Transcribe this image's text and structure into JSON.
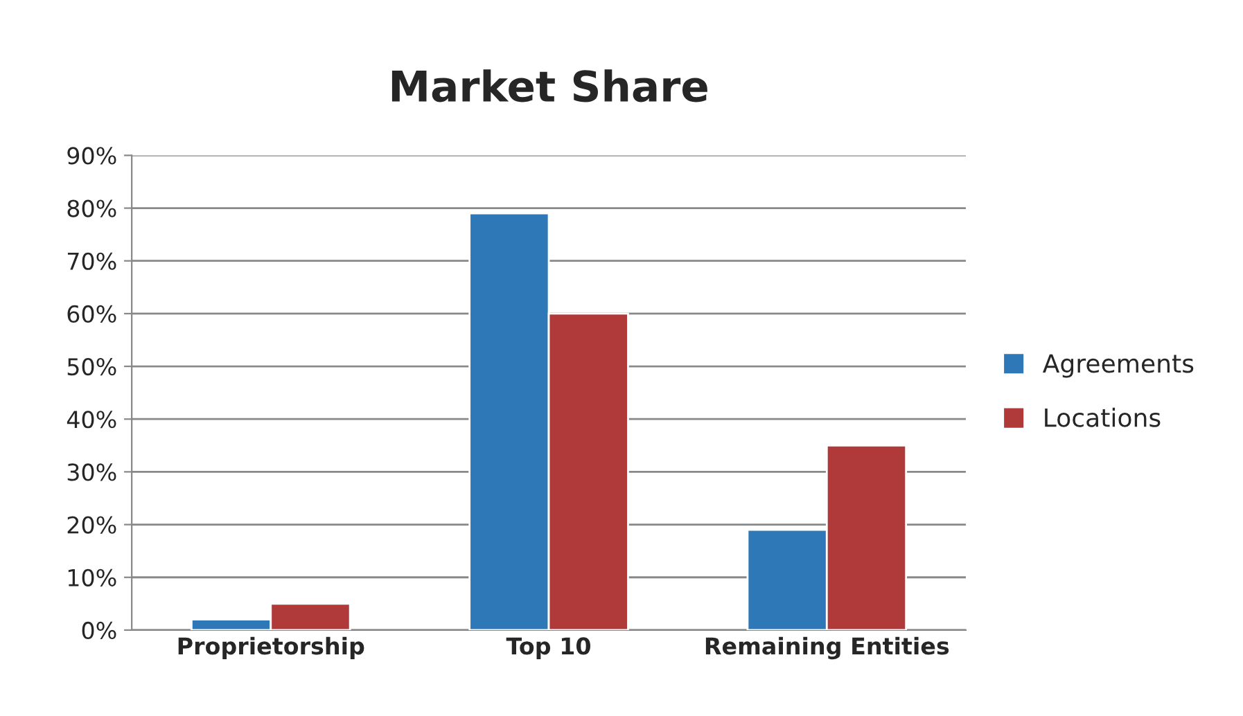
{
  "chart_data": {
    "type": "bar",
    "title": "Market Share",
    "categories": [
      "Proprietorship",
      "Top 10",
      "Remaining Entities"
    ],
    "series": [
      {
        "name": "Agreements",
        "color": "#2e78b7",
        "values": [
          2,
          79,
          19
        ]
      },
      {
        "name": "Locations",
        "color": "#b03a3a",
        "values": [
          5,
          60,
          35
        ]
      }
    ],
    "ylim": [
      0,
      90
    ],
    "yticks": [
      {
        "value": 0,
        "label": "0%"
      },
      {
        "value": 10,
        "label": "10%"
      },
      {
        "value": 20,
        "label": "20%"
      },
      {
        "value": 30,
        "label": "30%"
      },
      {
        "value": 40,
        "label": "40%"
      },
      {
        "value": 50,
        "label": "50%"
      },
      {
        "value": 60,
        "label": "60%"
      },
      {
        "value": 70,
        "label": "70%"
      },
      {
        "value": 80,
        "label": "80%"
      },
      {
        "value": 90,
        "label": "90%"
      }
    ],
    "grid": "y",
    "legend": "right"
  }
}
